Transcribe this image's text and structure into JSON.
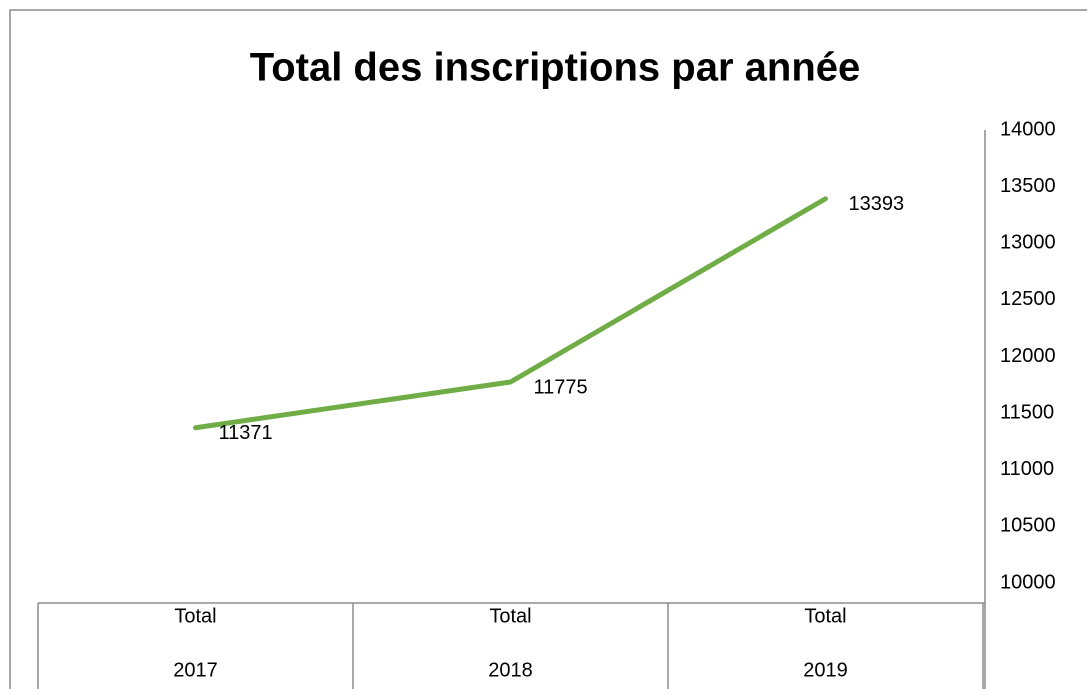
{
  "chart_data": {
    "type": "line",
    "title": "Total des inscriptions par année",
    "category_groups": [
      "Total",
      "Total",
      "Total"
    ],
    "categories": [
      "2017",
      "2018",
      "2019"
    ],
    "series": [
      {
        "name": "Total",
        "color": "#70ad47",
        "values": [
          11371,
          11775,
          13393
        ]
      }
    ],
    "ylim": [
      10000,
      14000
    ],
    "yticks": [
      10000,
      10500,
      11000,
      11500,
      12000,
      12500,
      13000,
      13500,
      14000
    ],
    "y_axis_side": "right",
    "data_labels": true,
    "grid": false
  }
}
